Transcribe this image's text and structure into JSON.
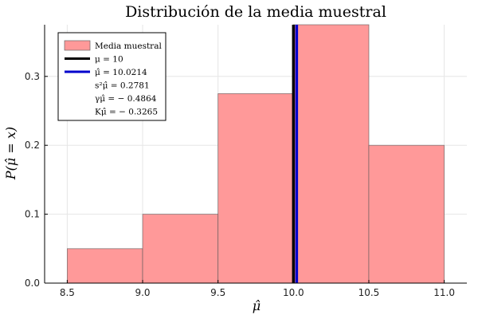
{
  "chart_data": {
    "type": "bar",
    "title": "Distribución de la media muestral",
    "xlabel": "μ̂",
    "ylabel": "P(μ̂ = x)",
    "xlim": [
      8.35,
      11.15
    ],
    "ylim": [
      0,
      0.375
    ],
    "x_ticks": [
      "8.5",
      "9.0",
      "9.5",
      "10.0",
      "10.5",
      "11.0"
    ],
    "y_ticks": [
      "0.0",
      "0.1",
      "0.2",
      "0.3"
    ],
    "bins": [
      {
        "start": 8.5,
        "end": 9.0,
        "value": 0.05
      },
      {
        "start": 9.0,
        "end": 9.5,
        "value": 0.1
      },
      {
        "start": 9.5,
        "end": 10.0,
        "value": 0.275
      },
      {
        "start": 10.0,
        "end": 10.5,
        "value": 0.375
      },
      {
        "start": 10.5,
        "end": 11.0,
        "value": 0.2
      }
    ],
    "bar_color": "#ff9999",
    "vlines": [
      {
        "x": 10.0,
        "color": "#000000"
      },
      {
        "x": 10.0214,
        "color": "#0000cc"
      }
    ],
    "grid": true,
    "legend_position": "top-left",
    "legend": [
      {
        "label": "Media muestral",
        "swatch": "bar",
        "color": "#ff9999"
      },
      {
        "label": "μ = 10",
        "swatch": "line",
        "color": "#000000"
      },
      {
        "label": "μ̂ = 10.0214",
        "swatch": "line",
        "color": "#0000cc"
      },
      {
        "label": "s²μ̂ = 0.2781",
        "swatch": "none",
        "color": ""
      },
      {
        "label": "γμ̂ = − 0.4864",
        "swatch": "none",
        "color": ""
      },
      {
        "label": "Kμ̂ = − 0.3265",
        "swatch": "none",
        "color": ""
      }
    ]
  }
}
